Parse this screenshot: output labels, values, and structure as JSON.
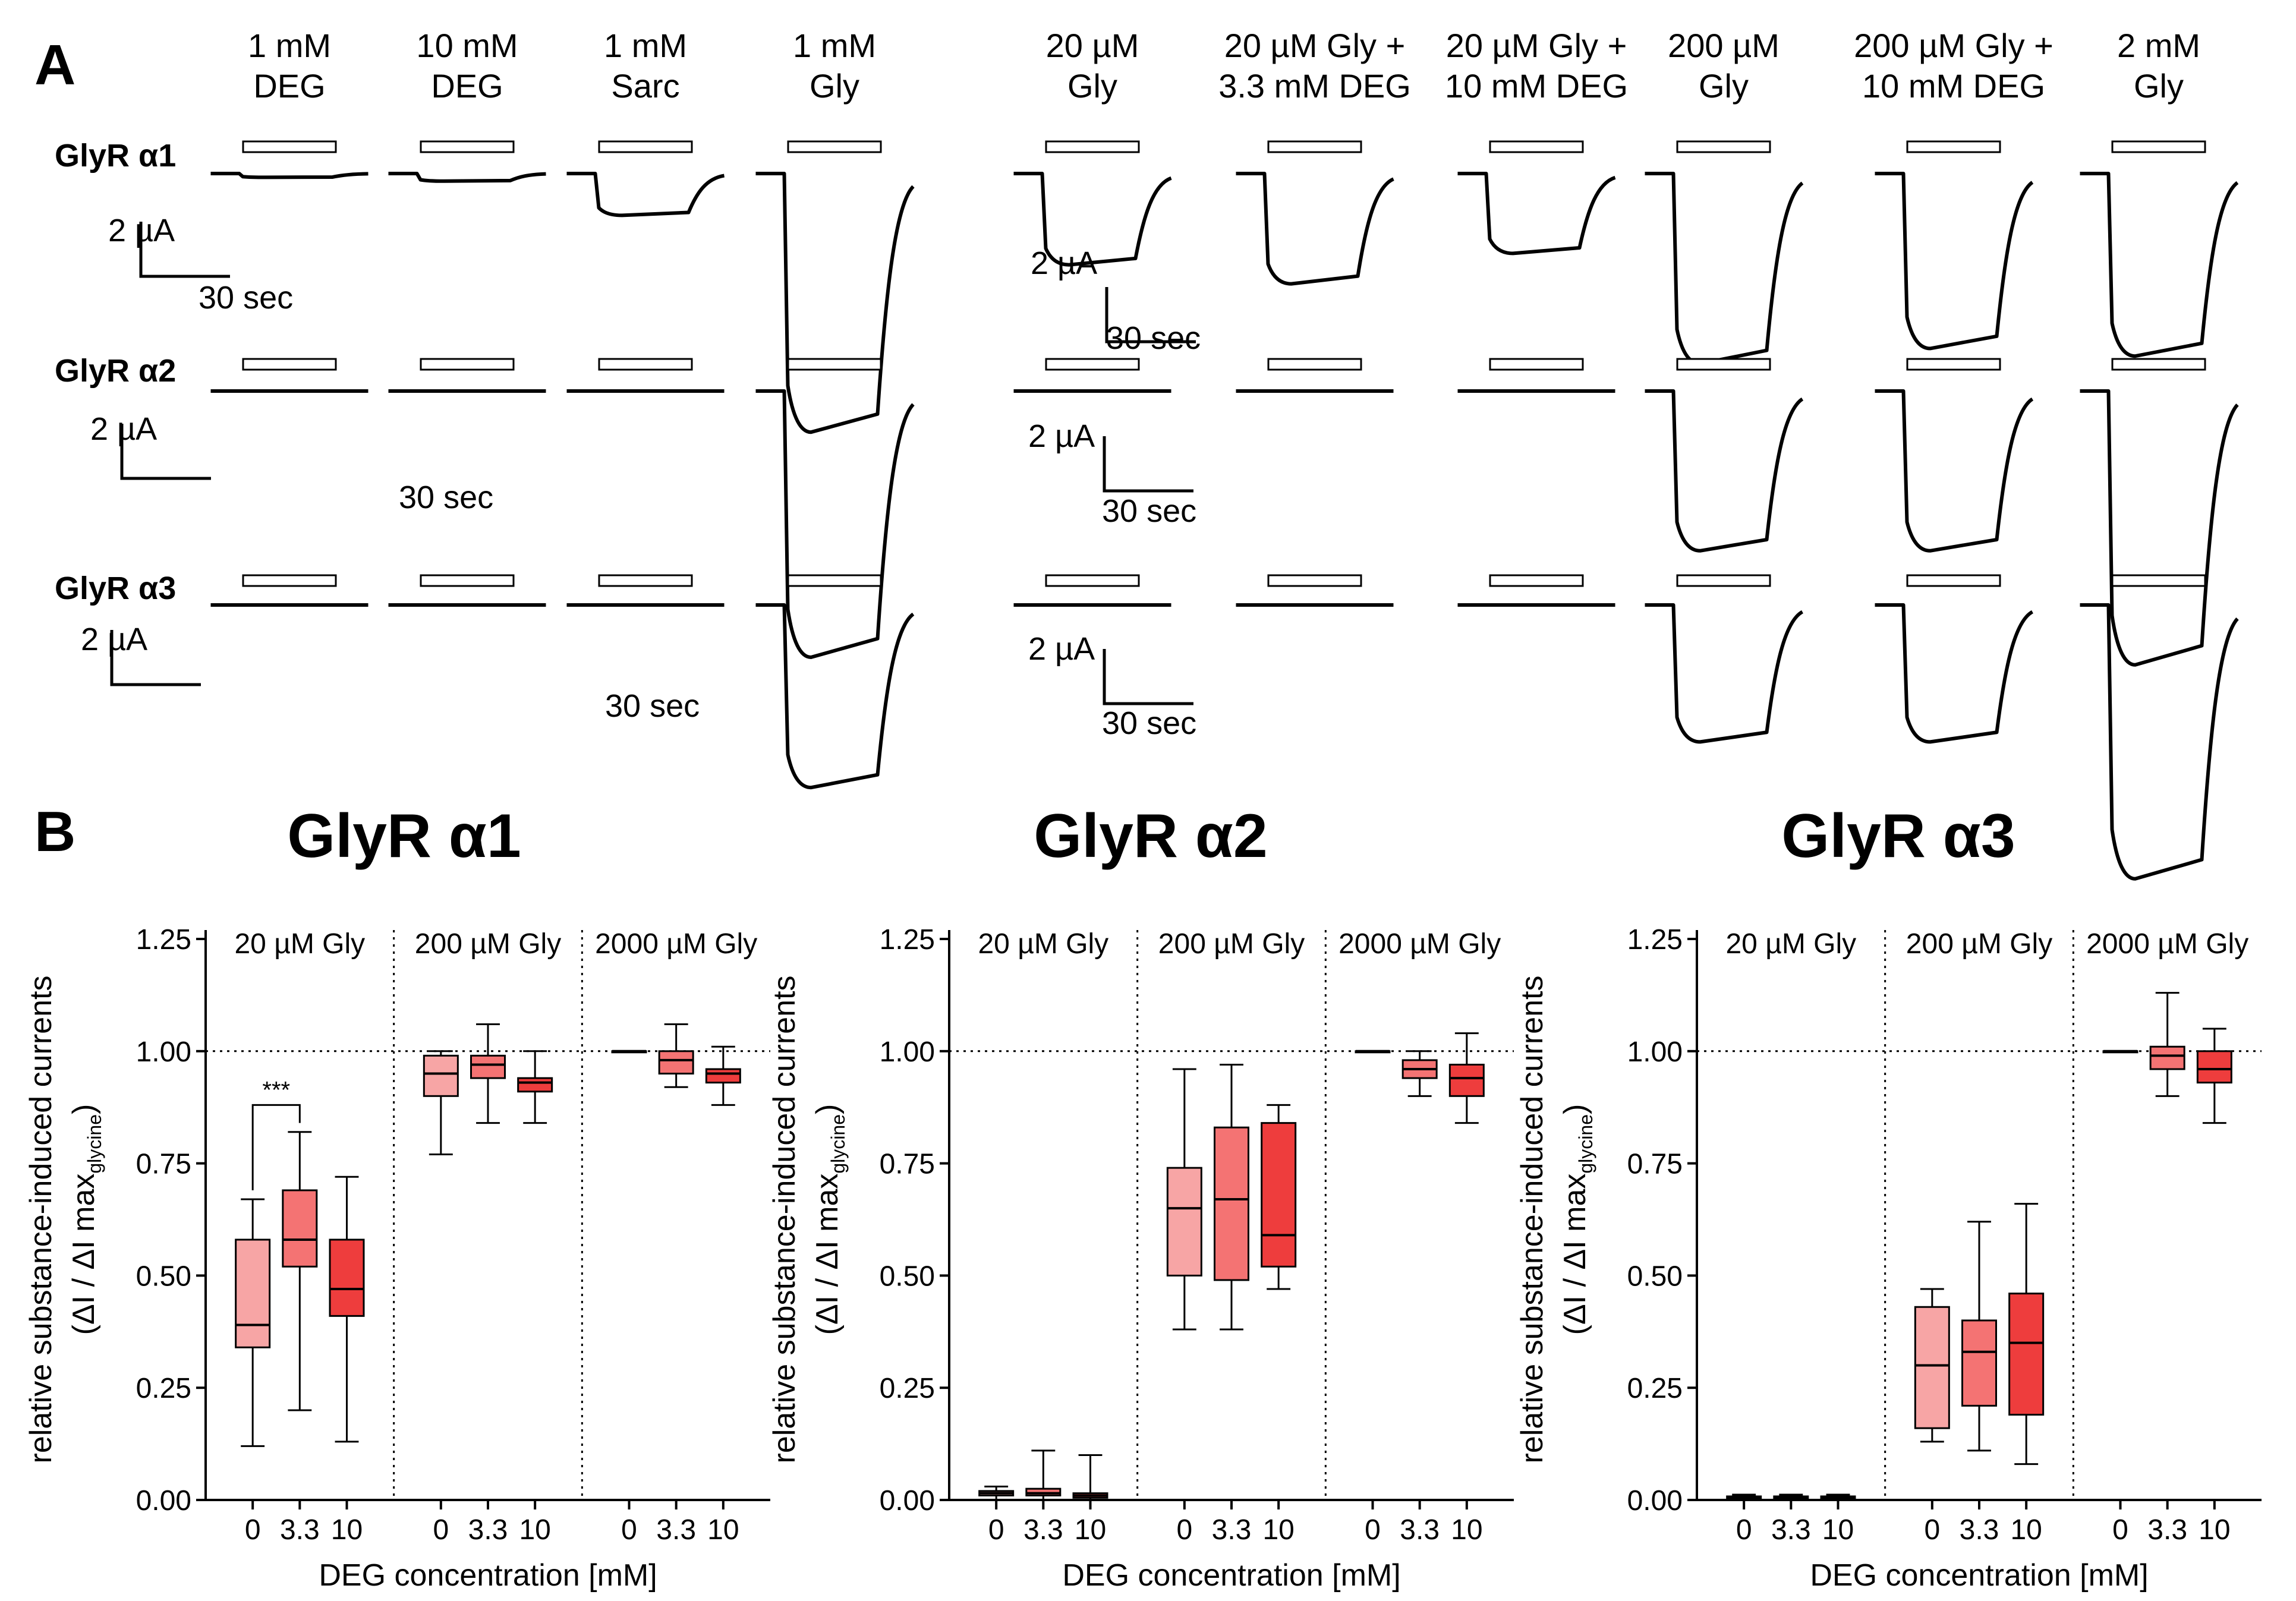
{
  "panel_a": {
    "label": "A",
    "columns": [
      {
        "line1": "1 mM",
        "line2": "DEG"
      },
      {
        "line1": "10 mM",
        "line2": "DEG"
      },
      {
        "line1": "1 mM",
        "line2": "Sarc"
      },
      {
        "line1": "1 mM",
        "line2": "Gly"
      },
      {
        "line1": "20 µM",
        "line2": "Gly"
      },
      {
        "line1": "20 µM Gly +",
        "line2": "3.3 mM DEG"
      },
      {
        "line1": "20 µM Gly +",
        "line2": "10 mM DEG"
      },
      {
        "line1": "200 µM",
        "line2": "Gly"
      },
      {
        "line1": "200 µM Gly +",
        "line2": "10 mM DEG"
      },
      {
        "line1": "2 mM",
        "line2": "Gly"
      }
    ],
    "rows": [
      {
        "label": "GlyR α1",
        "amplitudes": [
          0.05,
          0.1,
          0.55,
          3.4,
          1.2,
          1.45,
          1.05,
          2.5,
          2.3,
          2.4
        ]
      },
      {
        "label": "GlyR α2",
        "amplitudes": [
          0.02,
          0.02,
          0.02,
          3.5,
          0.02,
          0.02,
          0.02,
          2.1,
          2.1,
          3.6
        ]
      },
      {
        "label": "GlyR α3",
        "amplitudes": [
          0.02,
          0.02,
          0.02,
          2.4,
          0.02,
          0.02,
          0.02,
          1.8,
          1.8,
          3.6
        ]
      }
    ],
    "scale_bar": {
      "current": "2 µA",
      "time": "30 sec"
    }
  },
  "panel_b": {
    "label": "B",
    "y_axis_label": "relative substance-induced currents",
    "y_axis_label2_pre": "(ΔI / ΔI max",
    "y_axis_label2_sub": "glycine",
    "y_axis_label2_post": ")",
    "x_axis_label": "DEG concentration [mM]",
    "significance": "***"
  },
  "chart_data": [
    {
      "type": "box",
      "title": "GlyR α1",
      "groups": [
        "20 µM Gly",
        "200 µM Gly",
        "2000 µM Gly"
      ],
      "categories": [
        "0",
        "3.3",
        "10"
      ],
      "ylim": [
        0,
        1.25
      ],
      "yticks": [
        "0.00",
        "0.25",
        "0.50",
        "0.75",
        "1.00",
        "1.25"
      ],
      "reference_line": 1.0,
      "boxes": [
        {
          "group": "20 µM Gly",
          "deg": "0",
          "whisker_low": 0.12,
          "q1": 0.34,
          "median": 0.39,
          "q3": 0.58,
          "whisker_high": 0.67
        },
        {
          "group": "20 µM Gly",
          "deg": "3.3",
          "whisker_low": 0.2,
          "q1": 0.52,
          "median": 0.58,
          "q3": 0.69,
          "whisker_high": 0.82
        },
        {
          "group": "20 µM Gly",
          "deg": "10",
          "whisker_low": 0.13,
          "q1": 0.41,
          "median": 0.47,
          "q3": 0.58,
          "whisker_high": 0.72
        },
        {
          "group": "200 µM Gly",
          "deg": "0",
          "whisker_low": 0.77,
          "q1": 0.9,
          "median": 0.95,
          "q3": 0.99,
          "whisker_high": 1.0
        },
        {
          "group": "200 µM Gly",
          "deg": "3.3",
          "whisker_low": 0.84,
          "q1": 0.94,
          "median": 0.97,
          "q3": 0.99,
          "whisker_high": 1.06
        },
        {
          "group": "200 µM Gly",
          "deg": "10",
          "whisker_low": 0.84,
          "q1": 0.91,
          "median": 0.93,
          "q3": 0.94,
          "whisker_high": 1.0
        },
        {
          "group": "2000 µM Gly",
          "deg": "0",
          "whisker_low": 1.0,
          "q1": 1.0,
          "median": 1.0,
          "q3": 1.0,
          "whisker_high": 1.0
        },
        {
          "group": "2000 µM Gly",
          "deg": "3.3",
          "whisker_low": 0.92,
          "q1": 0.95,
          "median": 0.98,
          "q3": 1.0,
          "whisker_high": 1.06
        },
        {
          "group": "2000 µM Gly",
          "deg": "10",
          "whisker_low": 0.88,
          "q1": 0.93,
          "median": 0.95,
          "q3": 0.96,
          "whisker_high": 1.01
        }
      ]
    },
    {
      "type": "box",
      "title": "GlyR α2",
      "groups": [
        "20 µM Gly",
        "200 µM Gly",
        "2000 µM Gly"
      ],
      "categories": [
        "0",
        "3.3",
        "10"
      ],
      "ylim": [
        0,
        1.25
      ],
      "yticks": [
        "0.00",
        "0.25",
        "0.50",
        "0.75",
        "1.00",
        "1.25"
      ],
      "reference_line": 1.0,
      "boxes": [
        {
          "group": "20 µM Gly",
          "deg": "0",
          "whisker_low": 0.0,
          "q1": 0.01,
          "median": 0.015,
          "q3": 0.02,
          "whisker_high": 0.03
        },
        {
          "group": "20 µM Gly",
          "deg": "3.3",
          "whisker_low": 0.0,
          "q1": 0.01,
          "median": 0.015,
          "q3": 0.025,
          "whisker_high": 0.11
        },
        {
          "group": "20 µM Gly",
          "deg": "10",
          "whisker_low": 0.0,
          "q1": 0.005,
          "median": 0.01,
          "q3": 0.015,
          "whisker_high": 0.1
        },
        {
          "group": "200 µM Gly",
          "deg": "0",
          "whisker_low": 0.38,
          "q1": 0.5,
          "median": 0.65,
          "q3": 0.74,
          "whisker_high": 0.96
        },
        {
          "group": "200 µM Gly",
          "deg": "3.3",
          "whisker_low": 0.38,
          "q1": 0.49,
          "median": 0.67,
          "q3": 0.83,
          "whisker_high": 0.97
        },
        {
          "group": "200 µM Gly",
          "deg": "10",
          "whisker_low": 0.47,
          "q1": 0.52,
          "median": 0.59,
          "q3": 0.84,
          "whisker_high": 0.88
        },
        {
          "group": "2000 µM Gly",
          "deg": "0",
          "whisker_low": 1.0,
          "q1": 1.0,
          "median": 1.0,
          "q3": 1.0,
          "whisker_high": 1.0
        },
        {
          "group": "2000 µM Gly",
          "deg": "3.3",
          "whisker_low": 0.9,
          "q1": 0.94,
          "median": 0.96,
          "q3": 0.98,
          "whisker_high": 1.0
        },
        {
          "group": "2000 µM Gly",
          "deg": "10",
          "whisker_low": 0.84,
          "q1": 0.9,
          "median": 0.94,
          "q3": 0.97,
          "whisker_high": 1.04
        }
      ]
    },
    {
      "type": "box",
      "title": "GlyR α3",
      "groups": [
        "20 µM Gly",
        "200 µM Gly",
        "2000 µM Gly"
      ],
      "categories": [
        "0",
        "3.3",
        "10"
      ],
      "ylim": [
        0,
        1.25
      ],
      "yticks": [
        "0.00",
        "0.25",
        "0.50",
        "0.75",
        "1.00",
        "1.25"
      ],
      "reference_line": 1.0,
      "boxes": [
        {
          "group": "20 µM Gly",
          "deg": "0",
          "whisker_low": 0.0,
          "q1": 0.004,
          "median": 0.006,
          "q3": 0.008,
          "whisker_high": 0.012
        },
        {
          "group": "20 µM Gly",
          "deg": "3.3",
          "whisker_low": 0.0,
          "q1": 0.004,
          "median": 0.006,
          "q3": 0.008,
          "whisker_high": 0.012
        },
        {
          "group": "20 µM Gly",
          "deg": "10",
          "whisker_low": 0.0,
          "q1": 0.004,
          "median": 0.006,
          "q3": 0.008,
          "whisker_high": 0.012
        },
        {
          "group": "200 µM Gly",
          "deg": "0",
          "whisker_low": 0.13,
          "q1": 0.16,
          "median": 0.3,
          "q3": 0.43,
          "whisker_high": 0.47
        },
        {
          "group": "200 µM Gly",
          "deg": "3.3",
          "whisker_low": 0.11,
          "q1": 0.21,
          "median": 0.33,
          "q3": 0.4,
          "whisker_high": 0.62
        },
        {
          "group": "200 µM Gly",
          "deg": "10",
          "whisker_low": 0.08,
          "q1": 0.19,
          "median": 0.35,
          "q3": 0.46,
          "whisker_high": 0.66
        },
        {
          "group": "2000 µM Gly",
          "deg": "0",
          "whisker_low": 1.0,
          "q1": 1.0,
          "median": 1.0,
          "q3": 1.0,
          "whisker_high": 1.0
        },
        {
          "group": "2000 µM Gly",
          "deg": "3.3",
          "whisker_low": 0.9,
          "q1": 0.96,
          "median": 0.99,
          "q3": 1.01,
          "whisker_high": 1.13
        },
        {
          "group": "2000 µM Gly",
          "deg": "10",
          "whisker_low": 0.84,
          "q1": 0.93,
          "median": 0.96,
          "q3": 1.0,
          "whisker_high": 1.05
        }
      ]
    }
  ],
  "colors": {
    "deg_0": "#f7a5a5",
    "deg_3_3": "#f47373",
    "deg_10": "#ee3d3d",
    "line": "#000000"
  }
}
